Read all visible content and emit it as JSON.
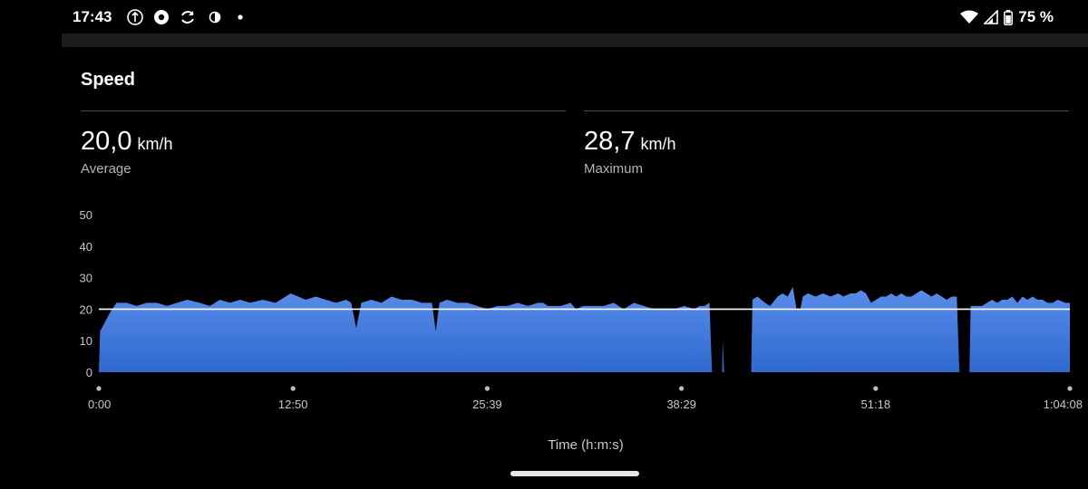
{
  "status_bar": {
    "time": "17:43",
    "notification_icons": [
      "vpn-icon",
      "chrome-icon",
      "sync-icon",
      "contrast-icon",
      "dot-icon"
    ],
    "battery_text": "75 %"
  },
  "page": {
    "title": "Speed"
  },
  "stats": {
    "average": {
      "value": "20,0",
      "unit": "km/h",
      "label": "Average"
    },
    "maximum": {
      "value": "28,7",
      "unit": "km/h",
      "label": "Maximum"
    }
  },
  "colors": {
    "fill_top": "#5a8eea",
    "fill_bottom": "#2f68cf",
    "average_line": "#ffffff",
    "axis_text": "#c8c8c8"
  },
  "chart_data": {
    "type": "area",
    "title": "",
    "xlabel": "Time (h:m:s)",
    "ylabel": "",
    "x_ticks": [
      "0:00",
      "12:50",
      "25:39",
      "38:29",
      "51:18",
      "1:04:08"
    ],
    "y_ticks": [
      0,
      10,
      20,
      30,
      40,
      50
    ],
    "ylim": [
      0,
      50
    ],
    "xlim_seconds": [
      0,
      3848
    ],
    "average_line": 20,
    "series": [
      {
        "values": [
          [
            0,
            0
          ],
          [
            5,
            13
          ],
          [
            25,
            16
          ],
          [
            45,
            19
          ],
          [
            70,
            22
          ],
          [
            110,
            22
          ],
          [
            150,
            21
          ],
          [
            190,
            22
          ],
          [
            230,
            22
          ],
          [
            270,
            21
          ],
          [
            310,
            22
          ],
          [
            350,
            23
          ],
          [
            400,
            22
          ],
          [
            440,
            21
          ],
          [
            480,
            23
          ],
          [
            520,
            22
          ],
          [
            560,
            23
          ],
          [
            600,
            22
          ],
          [
            650,
            23
          ],
          [
            700,
            22
          ],
          [
            740,
            24
          ],
          [
            760,
            25
          ],
          [
            790,
            24
          ],
          [
            820,
            23
          ],
          [
            860,
            24
          ],
          [
            900,
            23
          ],
          [
            940,
            22
          ],
          [
            980,
            23
          ],
          [
            1000,
            22
          ],
          [
            1020,
            14
          ],
          [
            1040,
            22
          ],
          [
            1080,
            23
          ],
          [
            1120,
            22
          ],
          [
            1160,
            24
          ],
          [
            1200,
            23
          ],
          [
            1240,
            23
          ],
          [
            1280,
            22
          ],
          [
            1320,
            22
          ],
          [
            1335,
            13
          ],
          [
            1350,
            22
          ],
          [
            1380,
            23
          ],
          [
            1420,
            22
          ],
          [
            1460,
            22
          ],
          [
            1500,
            21
          ],
          [
            1540,
            20
          ],
          [
            1580,
            21
          ],
          [
            1620,
            21
          ],
          [
            1660,
            22
          ],
          [
            1700,
            21
          ],
          [
            1740,
            22
          ],
          [
            1760,
            22
          ],
          [
            1780,
            21
          ],
          [
            1830,
            21
          ],
          [
            1870,
            22
          ],
          [
            1890,
            20
          ],
          [
            1920,
            21
          ],
          [
            1960,
            21
          ],
          [
            2000,
            21
          ],
          [
            2040,
            22
          ],
          [
            2080,
            20
          ],
          [
            2120,
            22
          ],
          [
            2160,
            21
          ],
          [
            2200,
            20
          ],
          [
            2240,
            20
          ],
          [
            2280,
            20
          ],
          [
            2320,
            21
          ],
          [
            2360,
            20
          ],
          [
            2380,
            21
          ],
          [
            2400,
            21
          ],
          [
            2420,
            22
          ],
          [
            2430,
            0
          ],
          [
            2470,
            0
          ],
          [
            2472,
            10
          ],
          [
            2478,
            0
          ],
          [
            2585,
            0
          ],
          [
            2590,
            23
          ],
          [
            2610,
            24
          ],
          [
            2640,
            22
          ],
          [
            2660,
            21
          ],
          [
            2690,
            24
          ],
          [
            2710,
            25
          ],
          [
            2730,
            24
          ],
          [
            2750,
            27
          ],
          [
            2765,
            20
          ],
          [
            2780,
            20
          ],
          [
            2790,
            24
          ],
          [
            2810,
            25
          ],
          [
            2840,
            24
          ],
          [
            2870,
            25
          ],
          [
            2900,
            24
          ],
          [
            2930,
            25
          ],
          [
            2950,
            24
          ],
          [
            2980,
            25
          ],
          [
            3000,
            25
          ],
          [
            3020,
            26
          ],
          [
            3040,
            25
          ],
          [
            3060,
            22
          ],
          [
            3080,
            23
          ],
          [
            3100,
            24
          ],
          [
            3120,
            24
          ],
          [
            3140,
            25
          ],
          [
            3160,
            24
          ],
          [
            3180,
            25
          ],
          [
            3200,
            24
          ],
          [
            3220,
            24
          ],
          [
            3240,
            25
          ],
          [
            3260,
            26
          ],
          [
            3280,
            25
          ],
          [
            3300,
            24
          ],
          [
            3320,
            25
          ],
          [
            3340,
            24
          ],
          [
            3360,
            23
          ],
          [
            3380,
            24
          ],
          [
            3400,
            24
          ],
          [
            3410,
            0
          ],
          [
            3450,
            0
          ],
          [
            3455,
            21
          ],
          [
            3480,
            21
          ],
          [
            3500,
            21
          ],
          [
            3520,
            22
          ],
          [
            3540,
            23
          ],
          [
            3560,
            22
          ],
          [
            3580,
            23
          ],
          [
            3600,
            23
          ],
          [
            3620,
            24
          ],
          [
            3640,
            22
          ],
          [
            3660,
            24
          ],
          [
            3680,
            23
          ],
          [
            3700,
            24
          ],
          [
            3720,
            23
          ],
          [
            3740,
            23
          ],
          [
            3760,
            22
          ],
          [
            3780,
            22
          ],
          [
            3800,
            23
          ],
          [
            3830,
            22
          ],
          [
            3848,
            22
          ]
        ]
      }
    ]
  },
  "nav": {
    "home_indicator": "home-indicator"
  }
}
